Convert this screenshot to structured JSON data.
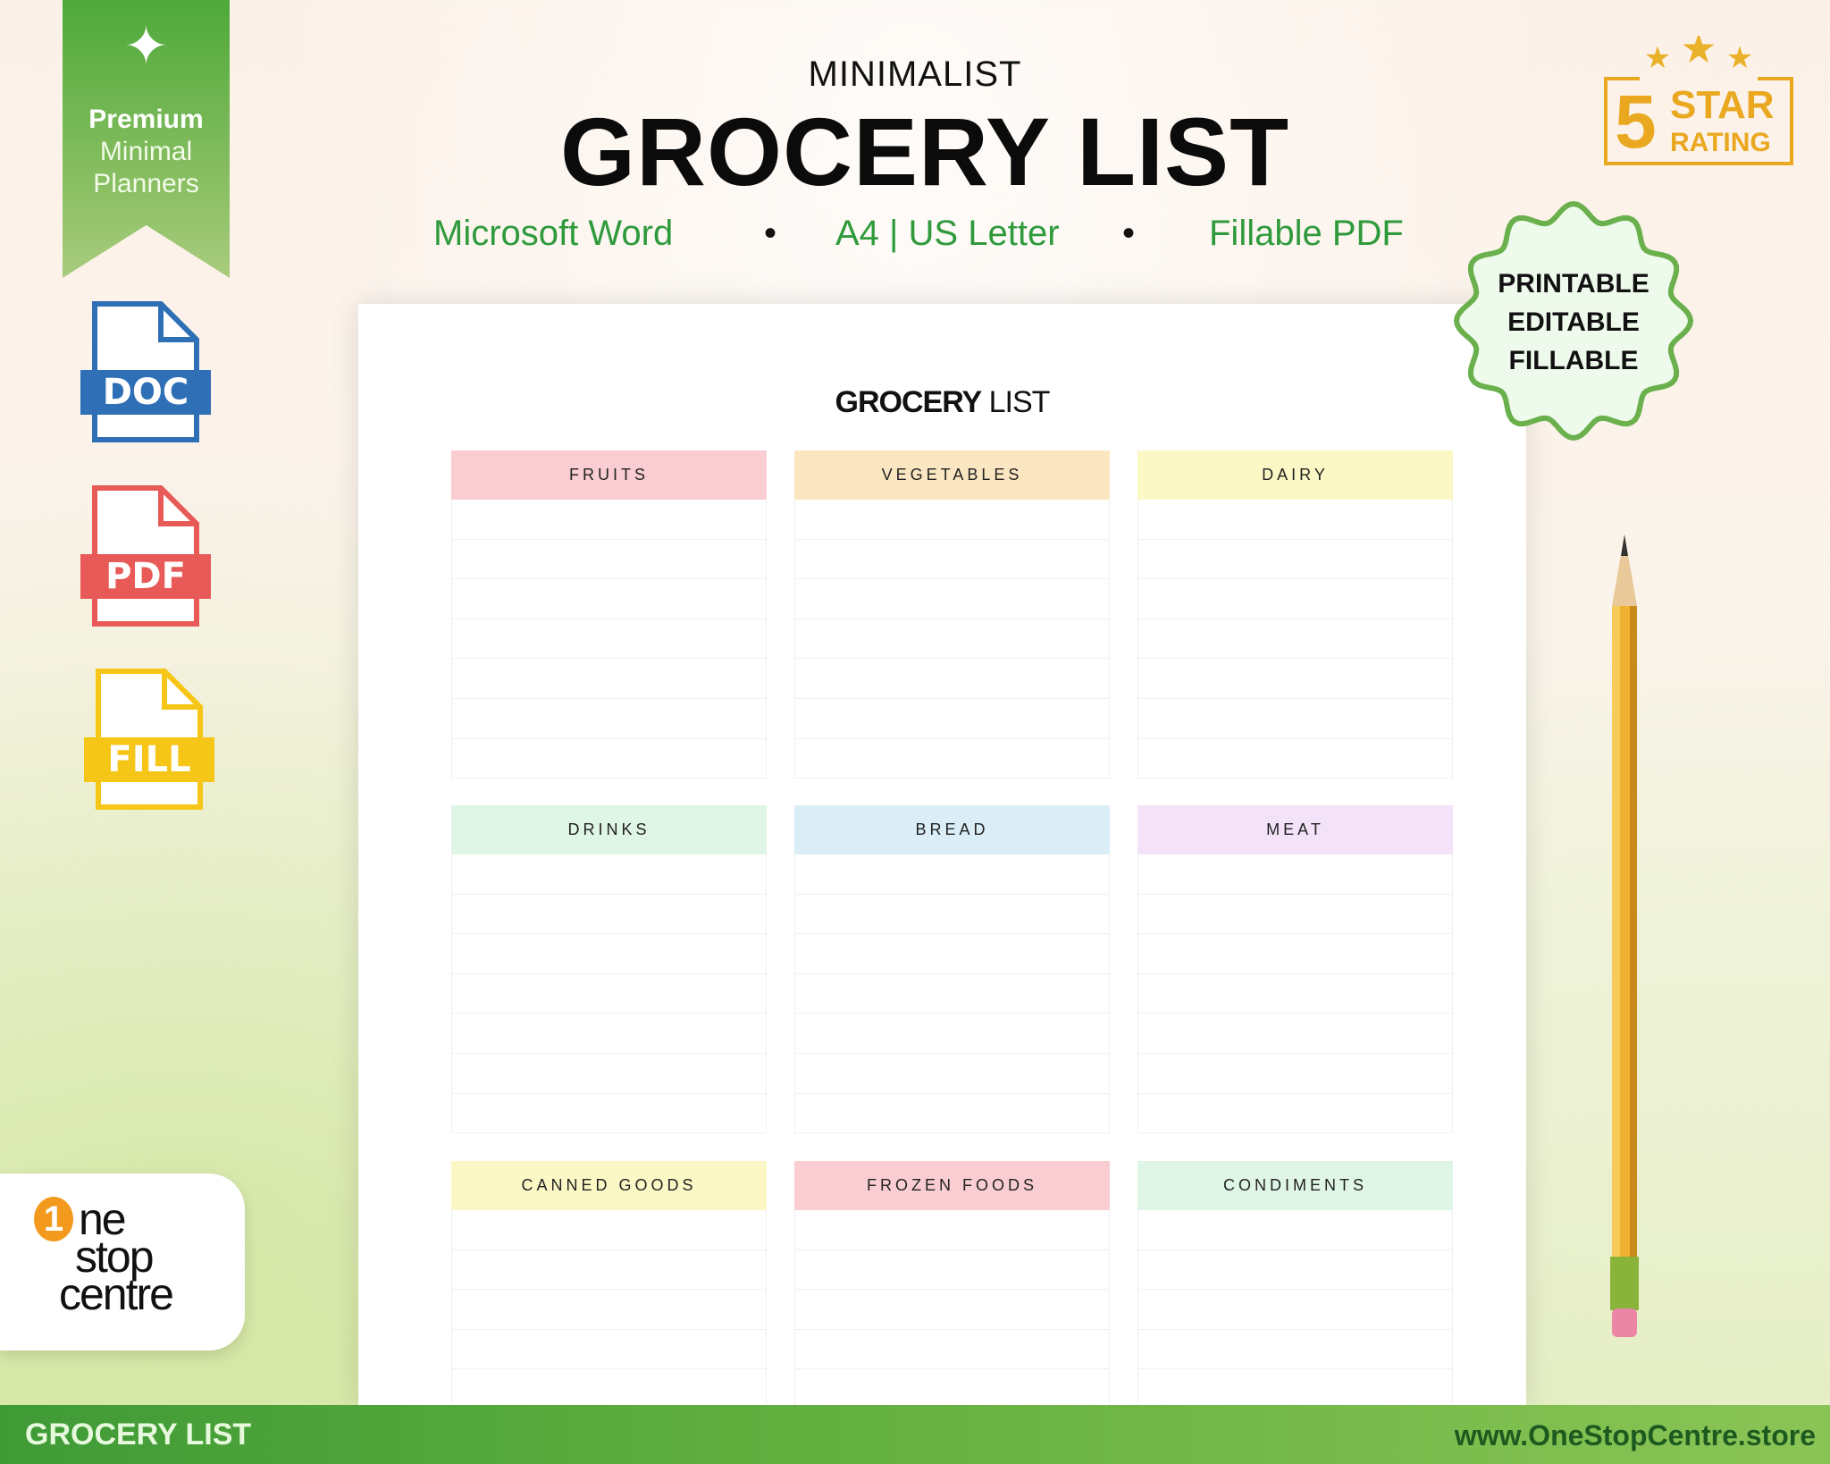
{
  "ribbon": {
    "icon": "sparkle-icon",
    "line1": "Premium",
    "line2": "Minimal",
    "line3": "Planners",
    "color": "#4ea93a"
  },
  "file_icons": [
    {
      "label": "DOC",
      "color": "#2f6fb5"
    },
    {
      "label": "PDF",
      "color": "#e85a57"
    },
    {
      "label": "FILL",
      "color": "#f5c518"
    }
  ],
  "header": {
    "subtitle": "MINIMALIST",
    "title": "GROCERY LIST",
    "formats": [
      "Microsoft Word",
      "A4 | US Letter",
      "Fillable PDF"
    ],
    "separator": "•"
  },
  "rating": {
    "number": "5",
    "line1": "STAR",
    "line2": "RATING",
    "stars": 3,
    "color": "#e9a820"
  },
  "badge": {
    "lines": [
      "PRINTABLE",
      "EDITABLE",
      "FILLABLE"
    ],
    "border": "#6ab04c",
    "fill": "#eefaec"
  },
  "paper": {
    "title_bold": "GROCERY",
    "title_light": "LIST",
    "sections": [
      {
        "label": "FRUITS",
        "color": "#f9cdd2"
      },
      {
        "label": "VEGETABLES",
        "color": "#fbe6c2"
      },
      {
        "label": "DAIRY",
        "color": "#fbf8c6"
      },
      {
        "label": "DRINKS",
        "color": "#dff5e6"
      },
      {
        "label": "BREAD",
        "color": "#dbeef8"
      },
      {
        "label": "MEAT",
        "color": "#f3e2f8"
      },
      {
        "label": "CANNED GOODS",
        "color": "#fbf8c6"
      },
      {
        "label": "FROZEN FOODS",
        "color": "#f9cdd2"
      },
      {
        "label": "CONDIMENTS",
        "color": "#dff5e6"
      }
    ]
  },
  "logo": {
    "line1": "ne",
    "line2": "stop",
    "line3": "centre",
    "digit": "1",
    "accent": "#f39a1e"
  },
  "footer": {
    "left": "GROCERY LIST",
    "right": "www.OneStopCentre.store"
  }
}
